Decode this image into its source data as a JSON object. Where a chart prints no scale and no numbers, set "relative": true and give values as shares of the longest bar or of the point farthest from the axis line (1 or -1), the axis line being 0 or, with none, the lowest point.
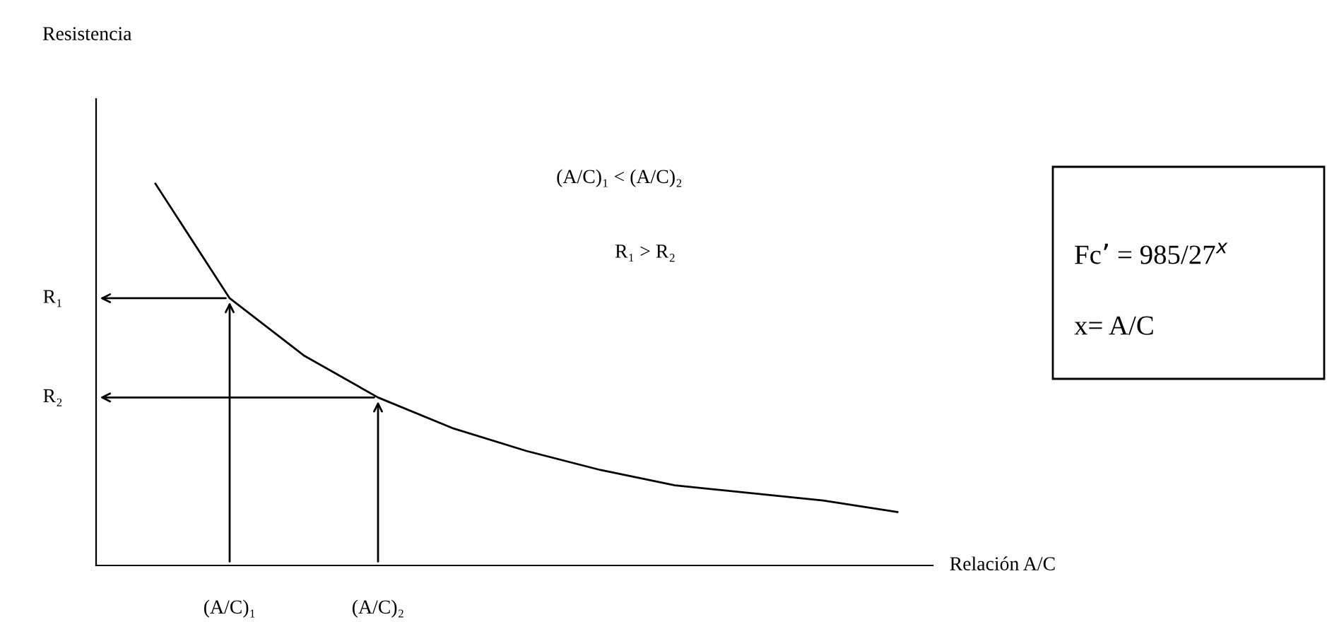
{
  "chart_data": {
    "type": "line",
    "relative": true,
    "xlabel": "Relación A/C",
    "categories": [
      null,
      null,
      null,
      null,
      null,
      null,
      null,
      null,
      null,
      null,
      null
    ],
    "values": [
      1,
      0.7,
      0.55,
      0.44,
      0.36,
      0.3,
      0.25,
      0.21,
      0.19,
      0.17,
      0.14
    ],
    "color": "#000000",
    "marker": "none",
    "line_style": "solid",
    "annotations": [
      "R₁",
      "R₂",
      "(A/C)₁",
      "(A/C)₂",
      "(A/C)₁ < (A/C)₂",
      "R₁ > R₂",
      "Fc’ = 985/27$^{x}$",
      "x= A/C",
      "Resistencia"
    ]
  }
}
